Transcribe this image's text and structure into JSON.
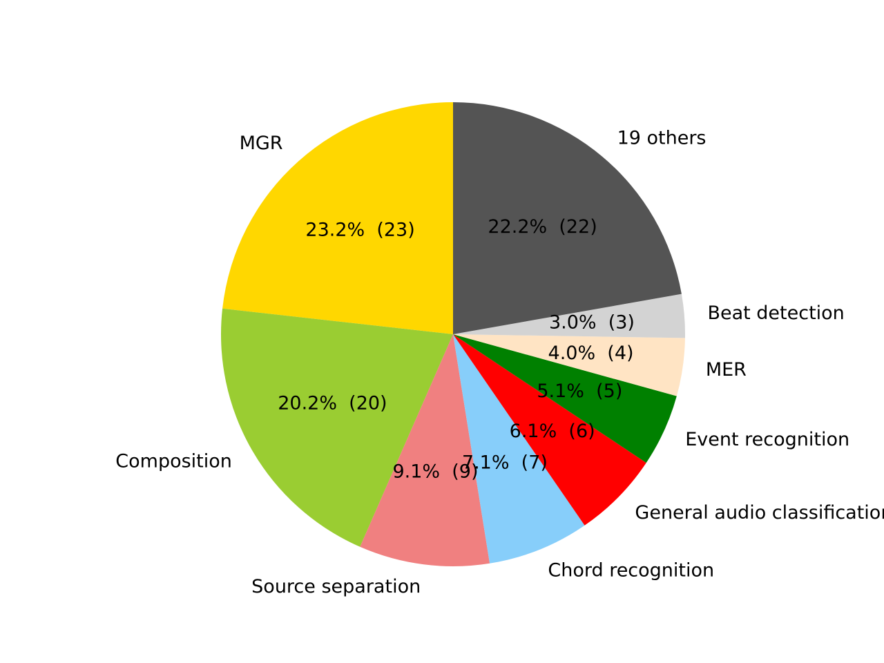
{
  "chart_data": {
    "type": "pie",
    "title": "",
    "start_angle_deg": 90,
    "direction": "counterclockwise",
    "slices": [
      {
        "label": "MGR",
        "value": 23,
        "percent_label": "23.2%  (23)",
        "color": "#FFD700"
      },
      {
        "label": "Composition",
        "value": 20,
        "percent_label": "20.2%  (20)",
        "color": "#9ACD32"
      },
      {
        "label": "Source separation",
        "value": 9,
        "percent_label": "9.1%  (9)",
        "color": "#F08080"
      },
      {
        "label": "Chord recognition",
        "value": 7,
        "percent_label": "7.1%  (7)",
        "color": "#87CEFA"
      },
      {
        "label": "General audio classification",
        "value": 6,
        "percent_label": "6.1%  (6)",
        "color": "#FF0000"
      },
      {
        "label": "Event recognition",
        "value": 5,
        "percent_label": "5.1%  (5)",
        "color": "#008000"
      },
      {
        "label": "MER",
        "value": 4,
        "percent_label": "4.0%  (4)",
        "color": "#FFE4C4"
      },
      {
        "label": "Beat detection",
        "value": 3,
        "percent_label": "3.0%  (3)",
        "color": "#D3D3D3"
      },
      {
        "label": "19 others",
        "value": 22,
        "percent_label": "22.2%  (22)",
        "color": "#545454"
      }
    ]
  }
}
